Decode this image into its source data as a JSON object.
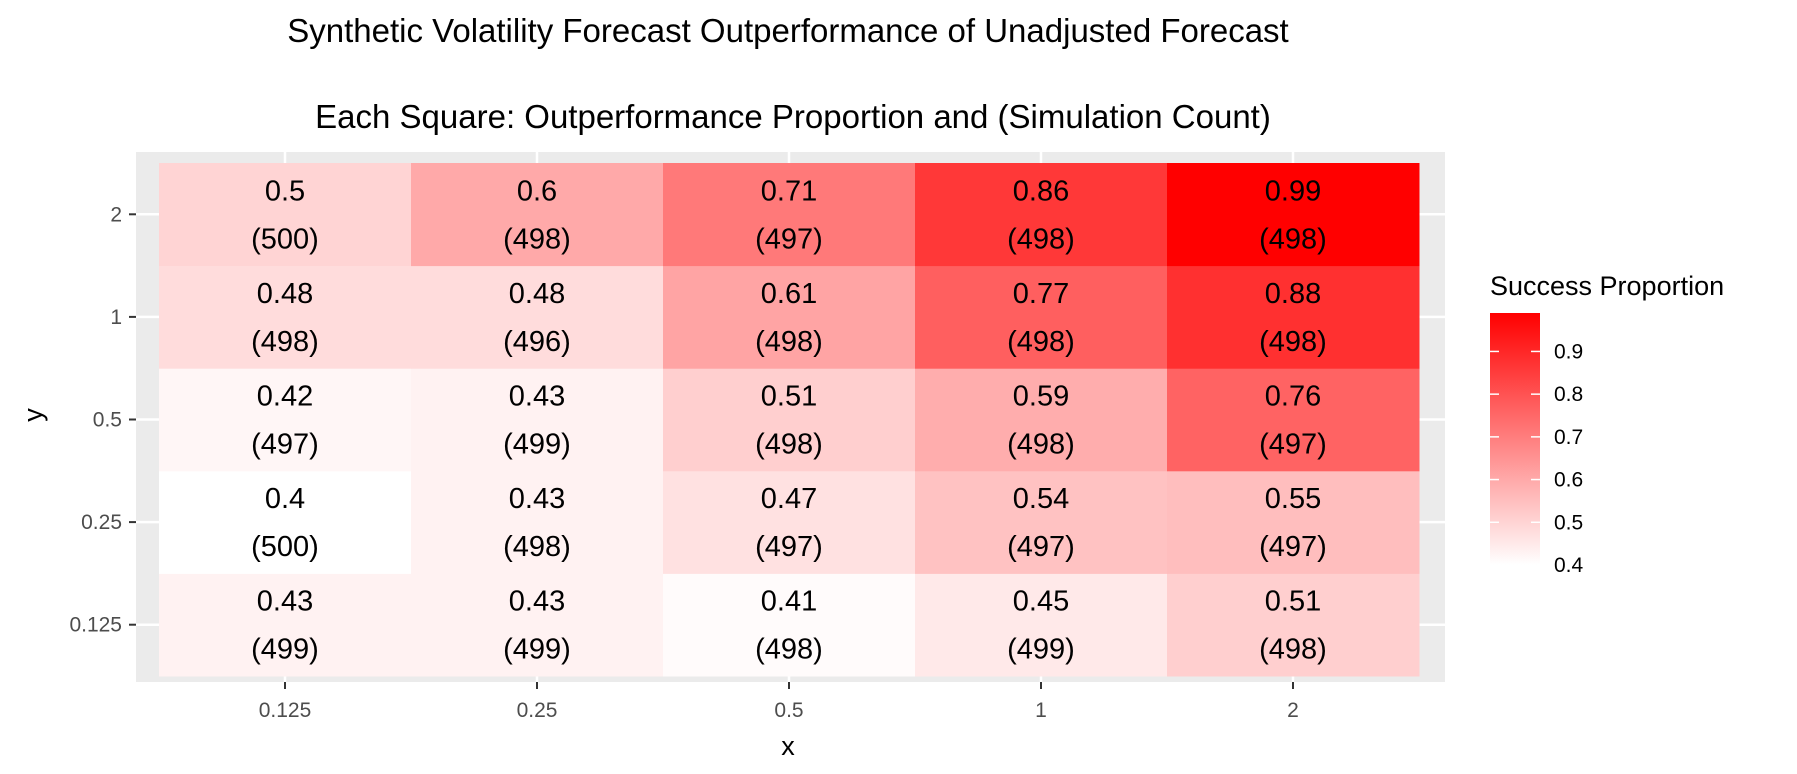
{
  "chart_data": {
    "type": "heatmap",
    "title": "Synthetic Volatility Forecast Outperformance of Unadjusted Forecast",
    "subtitle": "Each Square: Outperformance Proportion and (Simulation Count)",
    "xlabel": "x",
    "ylabel": "y",
    "x_categories": [
      "0.125",
      "0.25",
      "0.5",
      "1",
      "2"
    ],
    "y_categories": [
      "0.125",
      "0.25",
      "0.5",
      "1",
      "2"
    ],
    "cells": [
      {
        "x": "0.125",
        "y": "0.125",
        "value": 0.43,
        "value_label": "0.43",
        "count_label": "(499)"
      },
      {
        "x": "0.25",
        "y": "0.125",
        "value": 0.43,
        "value_label": "0.43",
        "count_label": "(499)"
      },
      {
        "x": "0.5",
        "y": "0.125",
        "value": 0.41,
        "value_label": "0.41",
        "count_label": "(498)"
      },
      {
        "x": "1",
        "y": "0.125",
        "value": 0.45,
        "value_label": "0.45",
        "count_label": "(499)"
      },
      {
        "x": "2",
        "y": "0.125",
        "value": 0.51,
        "value_label": "0.51",
        "count_label": "(498)"
      },
      {
        "x": "0.125",
        "y": "0.25",
        "value": 0.4,
        "value_label": "0.4",
        "count_label": "(500)"
      },
      {
        "x": "0.25",
        "y": "0.25",
        "value": 0.43,
        "value_label": "0.43",
        "count_label": "(498)"
      },
      {
        "x": "0.5",
        "y": "0.25",
        "value": 0.47,
        "value_label": "0.47",
        "count_label": "(497)"
      },
      {
        "x": "1",
        "y": "0.25",
        "value": 0.54,
        "value_label": "0.54",
        "count_label": "(497)"
      },
      {
        "x": "2",
        "y": "0.25",
        "value": 0.55,
        "value_label": "0.55",
        "count_label": "(497)"
      },
      {
        "x": "0.125",
        "y": "0.5",
        "value": 0.42,
        "value_label": "0.42",
        "count_label": "(497)"
      },
      {
        "x": "0.25",
        "y": "0.5",
        "value": 0.43,
        "value_label": "0.43",
        "count_label": "(499)"
      },
      {
        "x": "0.5",
        "y": "0.5",
        "value": 0.51,
        "value_label": "0.51",
        "count_label": "(498)"
      },
      {
        "x": "1",
        "y": "0.5",
        "value": 0.59,
        "value_label": "0.59",
        "count_label": "(498)"
      },
      {
        "x": "2",
        "y": "0.5",
        "value": 0.76,
        "value_label": "0.76",
        "count_label": "(497)"
      },
      {
        "x": "0.125",
        "y": "1",
        "value": 0.48,
        "value_label": "0.48",
        "count_label": "(498)"
      },
      {
        "x": "0.25",
        "y": "1",
        "value": 0.48,
        "value_label": "0.48",
        "count_label": "(496)"
      },
      {
        "x": "0.5",
        "y": "1",
        "value": 0.61,
        "value_label": "0.61",
        "count_label": "(498)"
      },
      {
        "x": "1",
        "y": "1",
        "value": 0.77,
        "value_label": "0.77",
        "count_label": "(498)"
      },
      {
        "x": "2",
        "y": "1",
        "value": 0.88,
        "value_label": "0.88",
        "count_label": "(498)"
      },
      {
        "x": "0.125",
        "y": "2",
        "value": 0.5,
        "value_label": "0.5",
        "count_label": "(500)"
      },
      {
        "x": "0.25",
        "y": "2",
        "value": 0.6,
        "value_label": "0.6",
        "count_label": "(498)"
      },
      {
        "x": "0.5",
        "y": "2",
        "value": 0.71,
        "value_label": "0.71",
        "count_label": "(497)"
      },
      {
        "x": "1",
        "y": "2",
        "value": 0.86,
        "value_label": "0.86",
        "count_label": "(498)"
      },
      {
        "x": "2",
        "y": "2",
        "value": 0.99,
        "value_label": "0.99",
        "count_label": "(498)"
      }
    ],
    "legend": {
      "title": "Success Proportion",
      "placement": "right",
      "ticks": [
        0.4,
        0.5,
        0.6,
        0.7,
        0.8,
        0.9
      ],
      "tick_labels": [
        "0.4",
        "0.5",
        "0.6",
        "0.7",
        "0.8",
        "0.9"
      ],
      "min": 0.4,
      "max": 0.99,
      "color_low": "#ffffff",
      "color_high": "#ff0000"
    },
    "panel_background": "#ebebeb",
    "grid_color": "#ffffff",
    "grid": true
  }
}
